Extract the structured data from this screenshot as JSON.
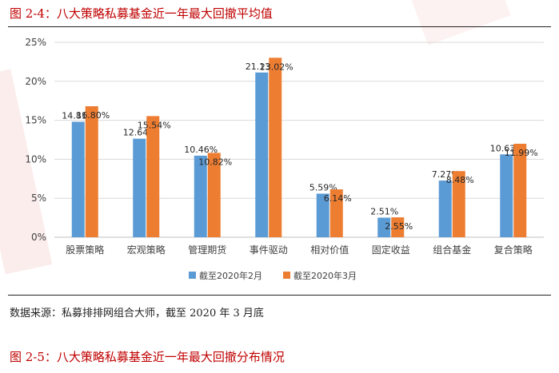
{
  "figure": {
    "title": "图 2-4：八大策略私募基金近一年最大回撤平均值",
    "source": "数据来源：私募排排网组合大师，截至 2020 年 3 月底",
    "next_title": "图 2-5：八大策略私募基金近一年最大回撤分布情况"
  },
  "colors": {
    "series_1": "#5b9bd5",
    "series_2": "#ed7d31",
    "title_red": "#c00000",
    "grid": "#d9d9d9",
    "axis_text": "#404040"
  },
  "chart_data": {
    "type": "bar",
    "categories": [
      "股票策略",
      "宏观策略",
      "管理期货",
      "事件驱动",
      "相对价值",
      "固定收益",
      "组合基金",
      "复合策略"
    ],
    "series": [
      {
        "name": "截至2020年2月",
        "values": [
          14.81,
          12.64,
          10.46,
          21.13,
          5.59,
          2.51,
          7.27,
          10.63
        ],
        "labels": [
          "14.81%",
          "12.64%",
          "10.46%",
          "21.13%",
          "5.59%",
          "2.51%",
          "7.27%",
          "10.63%"
        ]
      },
      {
        "name": "截至2020年3月",
        "values": [
          16.8,
          15.54,
          10.82,
          23.02,
          6.14,
          2.55,
          8.48,
          11.99
        ],
        "labels": [
          "16.80%",
          "15.54%",
          "10.82%",
          "23.02%",
          "6.14%",
          "2.55%",
          "8.48%",
          "11.99%"
        ]
      }
    ],
    "y_ticks": [
      "0%",
      "5%",
      "10%",
      "15%",
      "20%",
      "25%"
    ],
    "ylim": [
      0,
      25
    ],
    "grid": true,
    "legend_position": "bottom"
  }
}
